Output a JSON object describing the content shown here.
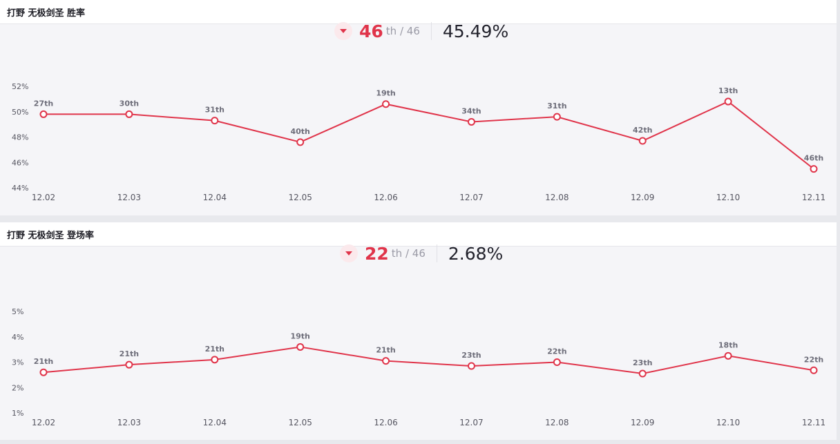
{
  "panels": [
    {
      "title": "打野 无极剑圣 胜率",
      "rank": "46",
      "rank_suffix": "th / 46",
      "rate": "45.49%",
      "trend": "down"
    },
    {
      "title": "打野 无极剑圣 登场率",
      "rank": "22",
      "rank_suffix": "th / 46",
      "rate": "2.68%",
      "trend": "down"
    }
  ],
  "colors": {
    "line": "#e0344a",
    "accent": "#e0344a"
  },
  "chart_data": [
    {
      "type": "line",
      "categories": [
        "12.02",
        "12.03",
        "12.04",
        "12.05",
        "12.06",
        "12.07",
        "12.08",
        "12.09",
        "12.10",
        "12.11"
      ],
      "values": [
        49.8,
        49.8,
        49.3,
        47.6,
        50.6,
        49.2,
        49.6,
        47.7,
        50.8,
        45.49
      ],
      "point_labels": [
        "27th",
        "30th",
        "31th",
        "40th",
        "19th",
        "34th",
        "31th",
        "42th",
        "13th",
        "46th"
      ],
      "yticks": [
        "52%",
        "50%",
        "48%",
        "46%",
        "44%"
      ],
      "ylim": [
        44,
        52
      ]
    },
    {
      "type": "line",
      "categories": [
        "12.02",
        "12.03",
        "12.04",
        "12.05",
        "12.06",
        "12.07",
        "12.08",
        "12.09",
        "12.10",
        "12.11"
      ],
      "values": [
        2.6,
        2.9,
        3.1,
        3.6,
        3.05,
        2.85,
        3.0,
        2.55,
        3.25,
        2.68
      ],
      "point_labels": [
        "21th",
        "21th",
        "21th",
        "19th",
        "21th",
        "23th",
        "22th",
        "23th",
        "18th",
        "22th"
      ],
      "yticks": [
        "5%",
        "4%",
        "3%",
        "2%",
        "1%"
      ],
      "ylim": [
        1,
        5
      ]
    }
  ]
}
